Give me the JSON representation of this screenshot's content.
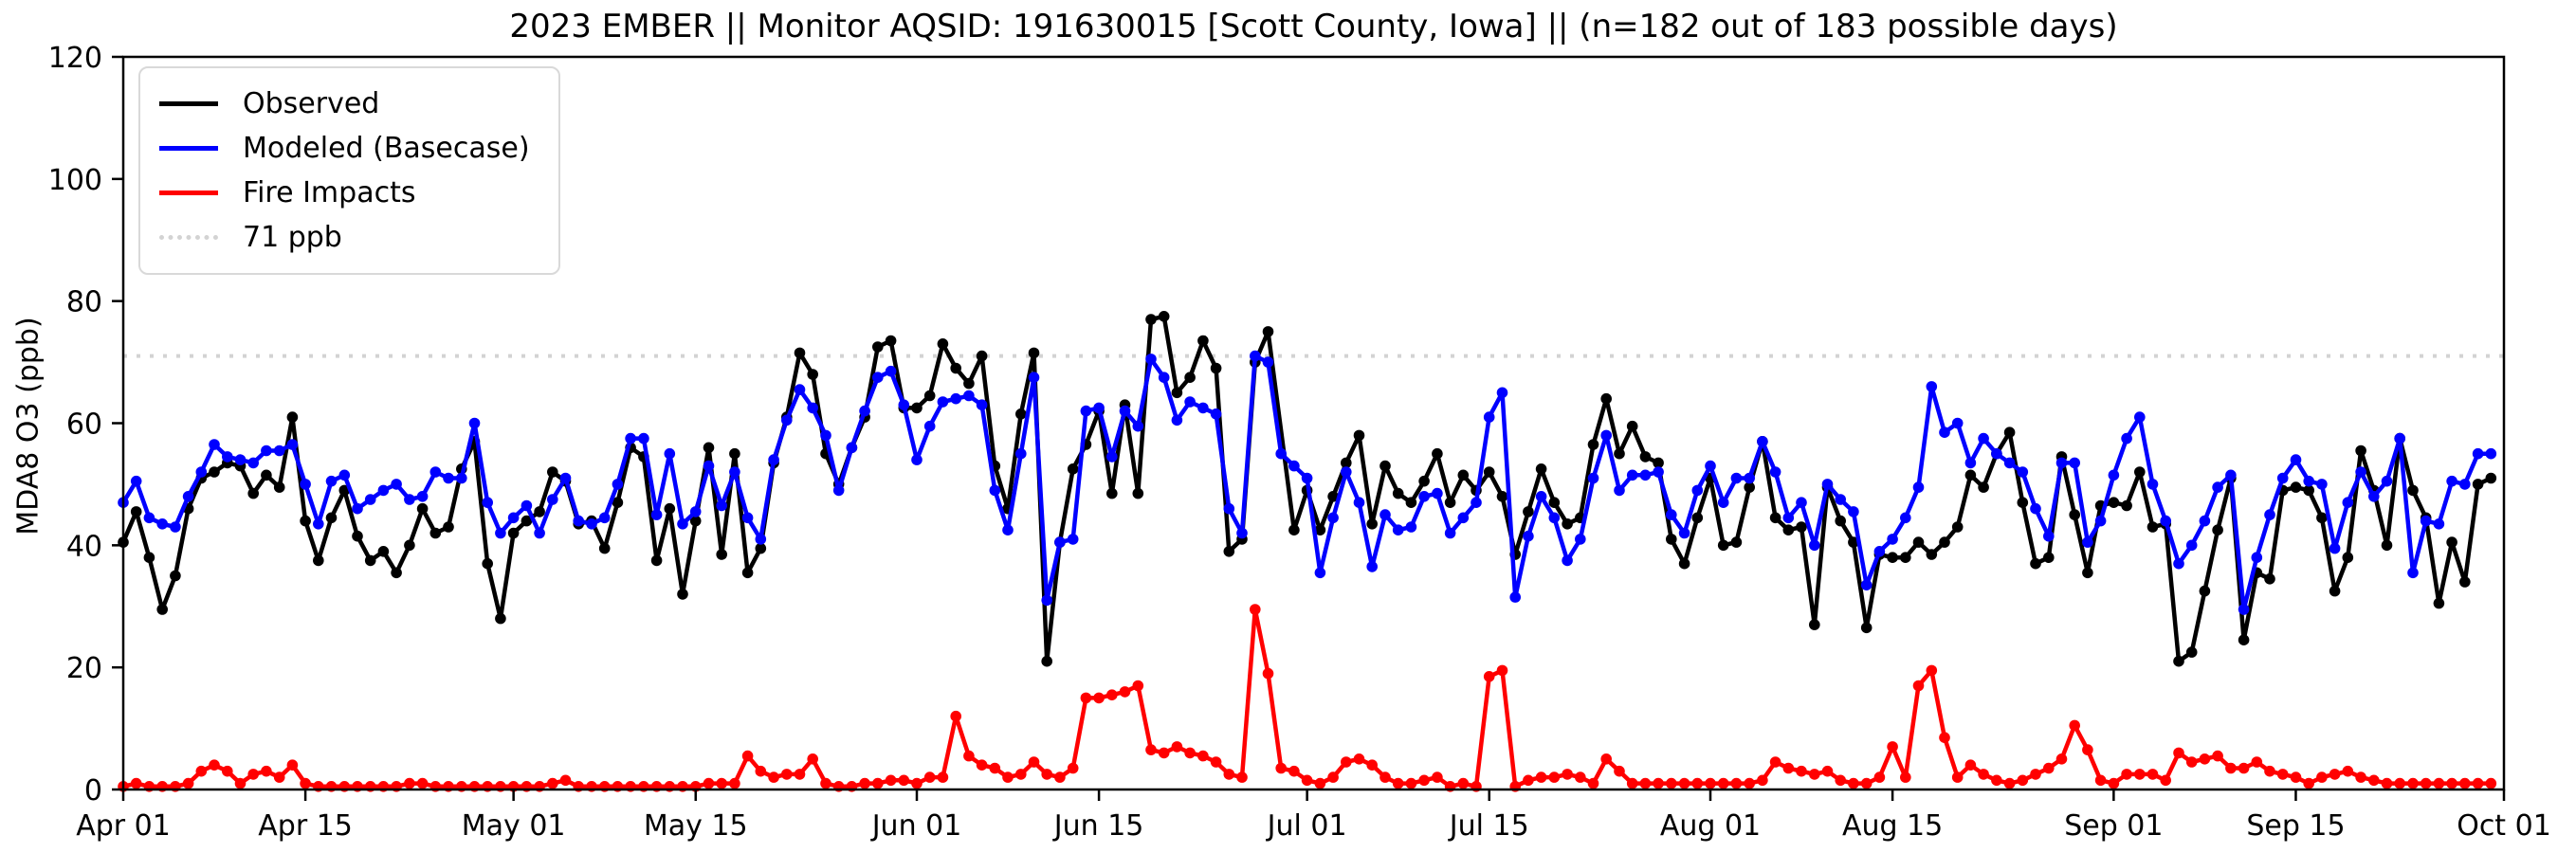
{
  "title": "2023 EMBER || Monitor AQSID: 191630015 [Scott County, Iowa] || (n=182 out of 183 possible days)",
  "y_axis": {
    "label": "MDA8 O3 (ppb)",
    "ticks": [
      0,
      20,
      40,
      60,
      80,
      100,
      120
    ],
    "range": [
      0,
      120
    ]
  },
  "x_axis": {
    "tick_labels": [
      "Apr 01",
      "Apr 15",
      "May 01",
      "May 15",
      "Jun 01",
      "Jun 15",
      "Jul 01",
      "Jul 15",
      "Aug 01",
      "Aug 15",
      "Sep 01",
      "Sep 15",
      "Oct 01"
    ],
    "tick_days": [
      0,
      14,
      30,
      44,
      61,
      75,
      91,
      105,
      122,
      136,
      153,
      167,
      183
    ],
    "range_days": [
      0,
      183
    ]
  },
  "legend": {
    "items": [
      {
        "label": "Observed",
        "color": "#000000",
        "style": "solid"
      },
      {
        "label": "Modeled (Basecase)",
        "color": "#0000ff",
        "style": "solid"
      },
      {
        "label": "Fire Impacts",
        "color": "#ff0000",
        "style": "solid"
      },
      {
        "label": "71 ppb",
        "color": "#d3d3d3",
        "style": "dotted"
      }
    ]
  },
  "colors": {
    "observed": "#000000",
    "modeled": "#0000ff",
    "fire": "#ff0000",
    "threshold": "#d3d3d3",
    "spine": "#000000"
  },
  "chart_data": {
    "type": "line",
    "title": "2023 EMBER || Monitor AQSID: 191630015 [Scott County, Iowa] || (n=182 out of 183 possible days)",
    "xlabel": "",
    "ylabel": "MDA8 O3 (ppb)",
    "ylim": [
      0,
      120
    ],
    "grid": false,
    "legend_position": "upper left",
    "x_unit": "days since Apr 01 2023 (0 = Apr 01, 182 = Sep 30)",
    "threshold": {
      "value": 71,
      "label": "71 ppb"
    },
    "n_note": "n=182 out of 183 possible days; Observed has one missing day (null)",
    "series": [
      {
        "name": "Observed",
        "color": "#000000",
        "values": [
          40.5,
          45.5,
          38,
          29.5,
          35,
          46,
          51,
          52,
          53.5,
          53,
          48.5,
          51.5,
          49.5,
          61,
          44,
          37.5,
          44.5,
          49,
          41.5,
          37.5,
          39,
          35.5,
          40,
          46,
          42,
          43,
          52.5,
          57,
          37,
          28,
          42,
          44,
          45.5,
          52,
          50.5,
          43.5,
          44,
          39.5,
          47,
          56,
          54.5,
          37.5,
          46,
          32,
          44,
          56,
          38.5,
          55,
          35.5,
          39.5,
          53.5,
          61,
          71.5,
          68,
          55,
          50,
          56,
          61,
          72.5,
          73.5,
          62.5,
          62.5,
          64.5,
          73,
          69,
          66.5,
          71,
          53,
          46,
          61.5,
          71.5,
          21,
          40.5,
          52.5,
          56.5,
          62,
          48.5,
          63,
          48.5,
          77,
          77.5,
          65,
          67.5,
          73.5,
          69,
          39,
          41,
          70,
          75,
          null,
          42.5,
          49,
          42.5,
          48,
          53.5,
          58,
          43.5,
          53,
          48.5,
          47,
          50.5,
          55,
          47,
          51.5,
          49,
          52,
          48,
          38.5,
          45.5,
          52.5,
          47,
          43.5,
          44.5,
          56.5,
          64,
          55,
          59.5,
          54.5,
          53.5,
          41,
          37,
          44.5,
          51,
          40,
          40.5,
          49.5,
          57,
          44.5,
          42.5,
          43,
          27,
          49.5,
          44,
          40.5,
          26.5,
          38.5,
          38,
          38,
          40.5,
          38.5,
          40.5,
          43,
          51.5,
          49.5,
          55,
          58.5,
          47,
          37,
          38,
          54.5,
          45,
          35.5,
          46.5,
          47,
          46.5,
          52,
          43,
          43.5,
          21,
          22.5,
          32.5,
          42.5,
          51,
          24.5,
          35.5,
          34.5,
          49,
          49.5,
          49,
          44.5,
          32.5,
          38,
          55.5,
          49,
          40,
          57.5,
          49,
          44.5,
          30.5,
          40.5,
          34,
          50,
          51
        ]
      },
      {
        "name": "Modeled (Basecase)",
        "color": "#0000ff",
        "values": [
          47,
          50.5,
          44.5,
          43.5,
          43,
          48,
          52,
          56.5,
          54.5,
          54,
          53.5,
          55.5,
          55.5,
          56.5,
          50,
          43.5,
          50.5,
          51.5,
          46,
          47.5,
          49,
          50,
          47.5,
          48,
          52,
          51,
          51,
          60,
          47,
          42,
          44.5,
          46.5,
          42,
          47.5,
          51,
          44,
          43.5,
          44.5,
          50,
          57.5,
          57.5,
          45,
          55,
          43.5,
          45.5,
          53,
          46.5,
          52,
          44.5,
          41,
          54,
          60.5,
          65.5,
          62.5,
          58,
          49,
          56,
          62,
          67.5,
          68.5,
          63,
          54,
          59.5,
          63.5,
          64,
          64.5,
          63,
          49,
          42.5,
          55,
          67.5,
          31,
          40.5,
          41,
          62,
          62.5,
          54.5,
          62,
          59.5,
          70.5,
          67.5,
          60.5,
          63.5,
          62.5,
          61.5,
          46,
          42,
          71,
          70,
          55,
          53,
          51,
          35.5,
          44.5,
          52,
          47,
          36.5,
          45,
          42.5,
          43,
          48,
          48.5,
          42,
          44.5,
          47,
          61,
          65,
          31.5,
          41.5,
          48,
          44.5,
          37.5,
          41,
          51,
          58,
          49,
          51.5,
          51.5,
          52,
          45,
          42,
          49,
          53,
          47,
          51,
          51,
          57,
          52,
          44.5,
          47,
          40,
          50,
          47.5,
          45.5,
          33.5,
          39,
          41,
          44.5,
          49.5,
          66,
          58.5,
          60,
          53.5,
          57.5,
          55,
          53.5,
          52,
          46,
          41.5,
          53.5,
          53.5,
          40.5,
          44,
          51.5,
          57.5,
          61,
          50,
          44,
          37,
          40,
          44,
          49.5,
          51.5,
          29.5,
          38,
          45,
          51,
          54,
          50.5,
          50,
          39.5,
          47,
          52,
          48,
          50.5,
          57.5,
          35.5,
          44,
          43.5,
          50.5,
          50,
          55,
          55
        ]
      },
      {
        "name": "Fire Impacts",
        "color": "#ff0000",
        "values": [
          0.5,
          1,
          0.5,
          0.5,
          0.5,
          1,
          3,
          4,
          3,
          1,
          2.5,
          3,
          2,
          4,
          1,
          0.5,
          0.5,
          0.5,
          0.5,
          0.5,
          0.5,
          0.5,
          1,
          1,
          0.5,
          0.5,
          0.5,
          0.5,
          0.5,
          0.5,
          0.5,
          0.5,
          0.5,
          1,
          1.5,
          0.5,
          0.5,
          0.5,
          0.5,
          0.5,
          0.5,
          0.5,
          0.5,
          0.5,
          0.5,
          1,
          1,
          1,
          5.5,
          3,
          2,
          2.5,
          2.5,
          5,
          1,
          0.5,
          0.5,
          1,
          1,
          1.5,
          1.5,
          1,
          2,
          2,
          12,
          5.5,
          4,
          3.5,
          2,
          2.5,
          4.5,
          2.5,
          2,
          3.5,
          15,
          15,
          15.5,
          16,
          17,
          6.5,
          6,
          7,
          6,
          5.5,
          4.5,
          2.5,
          2,
          29.5,
          19,
          3.5,
          3,
          1.5,
          1,
          2,
          4.5,
          5,
          4,
          2,
          1,
          1,
          1.5,
          2,
          0.5,
          1,
          0.5,
          18.5,
          19.5,
          0.5,
          1.5,
          2,
          2,
          2.5,
          2,
          1,
          5,
          3,
          1,
          1,
          1,
          1,
          1,
          1,
          1,
          1,
          1,
          1,
          1.5,
          4.5,
          3.5,
          3,
          2.5,
          3,
          1.5,
          1,
          1,
          2,
          7,
          2,
          17,
          19.5,
          8.5,
          2,
          4,
          2.5,
          1.5,
          1,
          1.5,
          2.5,
          3.5,
          5,
          10.5,
          6.5,
          1.5,
          1,
          2.5,
          2.5,
          2.5,
          1.5,
          6,
          4.5,
          5,
          5.5,
          3.5,
          3.5,
          4.5,
          3,
          2.5,
          2,
          1,
          2,
          2.5,
          3,
          2,
          1.5,
          1,
          1,
          1,
          1,
          1,
          1,
          1,
          1,
          1
        ]
      }
    ]
  }
}
